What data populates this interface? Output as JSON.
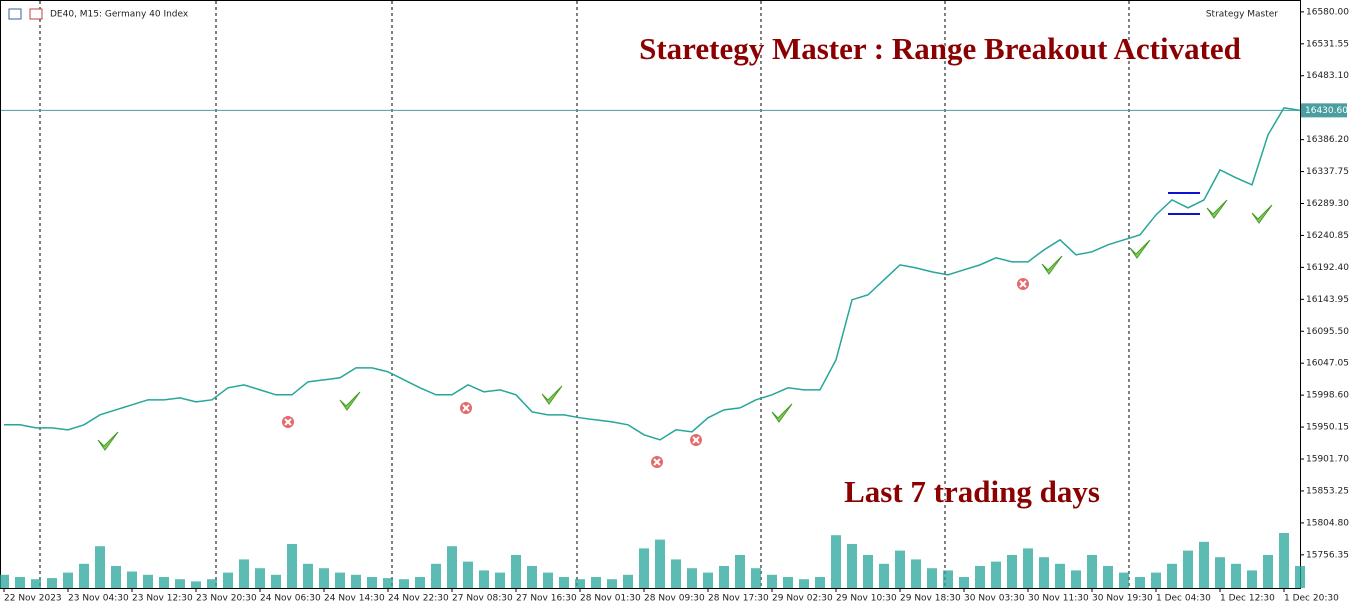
{
  "chart_data": {
    "type": "line",
    "header": "DE40, M15:  Germany 40 Index",
    "indicator": "Strategy Master",
    "title": "Staretegy Master : Range Breakout Activated",
    "annotation": "Last 7 trading days",
    "categories": [
      "22 Nov 2023",
      null,
      null,
      null,
      "23 Nov 04:30",
      null,
      null,
      null,
      "23 Nov 12:30",
      null,
      null,
      null,
      "23 Nov 20:30",
      null,
      null,
      null,
      "24 Nov 06:30",
      null,
      null,
      null,
      "24 Nov 14:30",
      null,
      null,
      null,
      "24 Nov 22:30",
      null,
      null,
      null,
      "27 Nov 08:30",
      null,
      null,
      null,
      "27 Nov 16:30",
      null,
      null,
      null,
      "28 Nov 01:30",
      null,
      null,
      null,
      "28 Nov 09:30",
      null,
      null,
      null,
      "28 Nov 17:30",
      null,
      null,
      null,
      "29 Nov 02:30",
      null,
      null,
      null,
      "29 Nov 10:30",
      null,
      null,
      null,
      "29 Nov 18:30",
      null,
      null,
      null,
      "30 Nov 03:30",
      null,
      null,
      null,
      "30 Nov 11:30",
      null,
      null,
      null,
      "30 Nov 19:30",
      null,
      null,
      null,
      "1 Dec 04:30",
      null,
      null,
      null,
      "1 Dec 12:30",
      null,
      null,
      null,
      "1 Dec 20:30",
      null
    ],
    "values": [
      15953.6,
      15953.6,
      15949,
      15949,
      15946,
      15953.6,
      15968.7,
      15976.3,
      15983.9,
      15991.5,
      15991.5,
      15994.5,
      15988.4,
      15991.5,
      16009.7,
      16014.2,
      16006.6,
      15999.1,
      15999.1,
      16018.8,
      16021.8,
      16024.9,
      16040,
      16040,
      16034,
      16021.8,
      16009.7,
      15999.1,
      15999.1,
      16014.2,
      16003.6,
      16006.6,
      15999.1,
      15973.3,
      15968.7,
      15968.7,
      15964.2,
      15961.1,
      15958.1,
      15953.6,
      15938.4,
      15930.8,
      15946,
      15942.9,
      15964.2,
      15976.3,
      15979.3,
      15991.5,
      15999.1,
      16009.7,
      16006.6,
      16006.6,
      16052.2,
      16143.2,
      16150.7,
      16173.5,
      16196.2,
      16191.7,
      16185.6,
      16181.1,
      16188.7,
      16196.2,
      16206.9,
      16200.8,
      16200.8,
      16219,
      16234.2,
      16211.4,
      16216,
      16226.6,
      16234.2,
      16241.8,
      16272.1,
      16294.8,
      16282.7,
      16294.8,
      16340.3,
      16328.2,
      16317.6,
      16393.4,
      16434.4,
      16430.6
    ],
    "volume": [
      12,
      10,
      8,
      9,
      14,
      22,
      38,
      20,
      15,
      12,
      10,
      8,
      6,
      8,
      14,
      26,
      18,
      12,
      40,
      22,
      18,
      14,
      12,
      10,
      9,
      8,
      10,
      22,
      38,
      24,
      16,
      14,
      30,
      20,
      14,
      10,
      8,
      10,
      8,
      12,
      36,
      44,
      26,
      18,
      14,
      20,
      30,
      18,
      12,
      10,
      8,
      10,
      48,
      40,
      30,
      22,
      34,
      26,
      18,
      16,
      10,
      20,
      24,
      30,
      36,
      28,
      22,
      16,
      30,
      20,
      14,
      10,
      14,
      22,
      34,
      42,
      28,
      22,
      16,
      30,
      50,
      20
    ],
    "color": "#26a69a",
    "ylim": [
      15703,
      16598
    ],
    "yticks": [
      {
        "value": 16580,
        "label": "16580.00"
      },
      {
        "value": 16531.55,
        "label": "16531.55"
      },
      {
        "value": 16483.1,
        "label": "16483.10"
      },
      {
        "value": 16386.2,
        "label": "16386.20"
      },
      {
        "value": 16337.75,
        "label": "16337.75"
      },
      {
        "value": 16289.3,
        "label": "16289.30"
      },
      {
        "value": 16240.85,
        "label": "16240.85"
      },
      {
        "value": 16192.4,
        "label": "16192.40"
      },
      {
        "value": 16143.95,
        "label": "16143.95"
      },
      {
        "value": 16095.5,
        "label": "16095.50"
      },
      {
        "value": 16047.05,
        "label": "16047.05"
      },
      {
        "value": 15998.6,
        "label": "15998.60"
      },
      {
        "value": 15950.15,
        "label": "15950.15"
      },
      {
        "value": 15901.7,
        "label": "15901.70"
      },
      {
        "value": 15853.25,
        "label": "15853.25"
      },
      {
        "value": 15804.8,
        "label": "15804.80"
      },
      {
        "value": 15756.35,
        "label": "15756.35"
      }
    ],
    "current_price": {
      "value": 16430.6,
      "label": "16430.60"
    }
  }
}
